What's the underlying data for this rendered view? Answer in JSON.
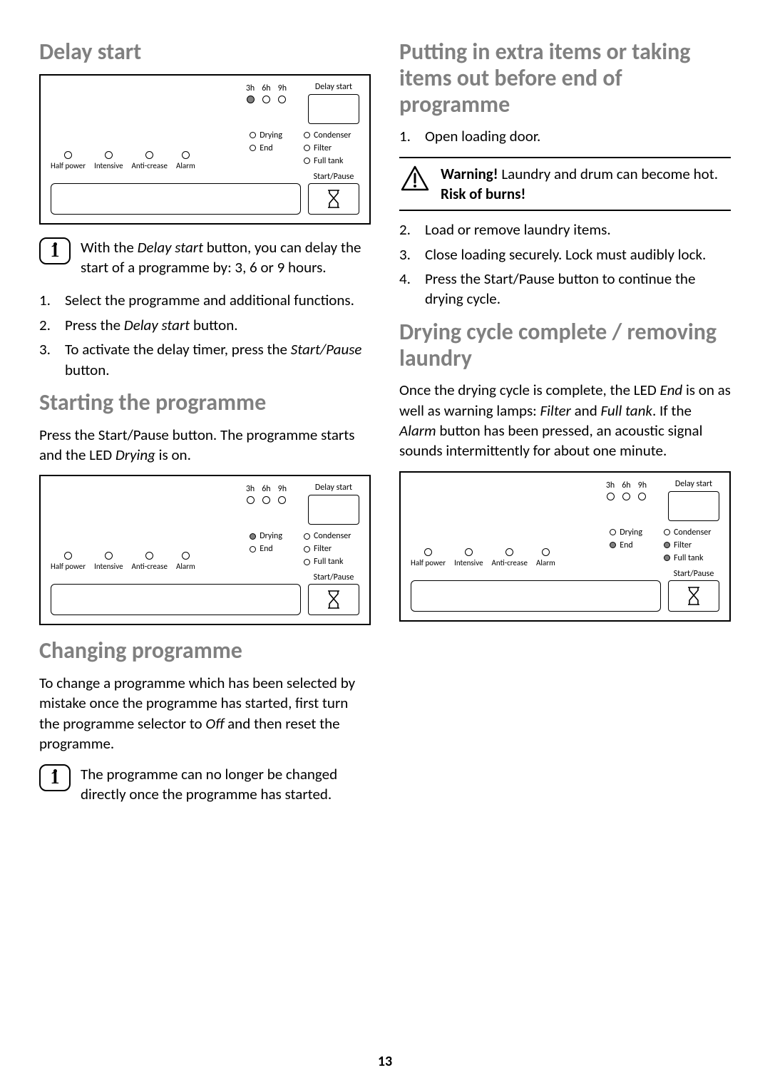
{
  "page_number": "13",
  "left": {
    "h_delay": "Delay start",
    "note_delay": "With the <span class=\"italic\">Delay start</span> button, you can delay the start of a programme by: 3, 6 or 9 hours.",
    "steps_delay": [
      "Select the programme and additional functions.",
      "Press the <span class=\"italic\">Delay start</span> button.",
      "To activate the delay timer, press the <span class=\"italic\">Start/Pause</span> button."
    ],
    "h_start": "Starting the programme",
    "p_start": "Press the Start/Pause button. The programme starts and the LED <span class=\"italic\">Drying</span> is on.",
    "h_change": "Changing programme",
    "p_change": "To change a programme which has been selected by mistake once the programme has started, first turn the programme selector to <span class=\"italic\">Off</span> and then reset the programme.",
    "note_change": "The programme can no longer be changed directly once the programme has started."
  },
  "right": {
    "h_extra": "Putting in extra items or taking items out before end of programme",
    "step1": "Open loading door.",
    "warning": "<span class=\"bold\">Warning!</span> Laundry and drum can become hot. <span class=\"bold\">Risk of burns!</span>",
    "steps_rest": [
      {
        "n": "2.",
        "t": "Load or remove laundry items."
      },
      {
        "n": "3.",
        "t": "Close loading securely. Lock must audibly lock."
      },
      {
        "n": "4.",
        "t": "Press the Start/Pause button to continue the drying cycle."
      }
    ],
    "h_complete": "Drying cycle complete / removing laundry",
    "p_complete": "Once the drying cycle is complete, the LED <span class=\"italic\">End</span> is on as well as warning lamps: <span class=\"italic\">Filter</span> and <span class=\"italic\">Full tank</span>. If the <span class=\"italic\">Alarm</span> button has been pressed, an acoustic signal sounds intermittently for about one minute."
  },
  "panel": {
    "delay_lbl": "Delay start",
    "hrs": [
      "3h",
      "6h",
      "9h"
    ],
    "status": [
      "Drying",
      "End"
    ],
    "right_status": [
      "Condenser",
      "Filter",
      "Full tank"
    ],
    "opts": [
      "Half power",
      "Intensive",
      "Anti-crease",
      "Alarm"
    ],
    "sp": "Start/Pause"
  },
  "panel_states": {
    "p1": {
      "hr_filled": [
        true,
        false,
        false
      ],
      "drying": false,
      "end": false,
      "cond": false,
      "filter": false,
      "ft": false,
      "sp_icon": "hourglass"
    },
    "p2": {
      "hr_filled": [
        false,
        false,
        false
      ],
      "drying": true,
      "end": false,
      "cond": false,
      "filter": false,
      "ft": false,
      "sp_icon": "hourglass-run"
    },
    "p3": {
      "hr_filled": [
        false,
        false,
        false
      ],
      "drying": false,
      "end": true,
      "cond": false,
      "filter": true,
      "ft": true,
      "sp_icon": "hourglass-run"
    }
  }
}
